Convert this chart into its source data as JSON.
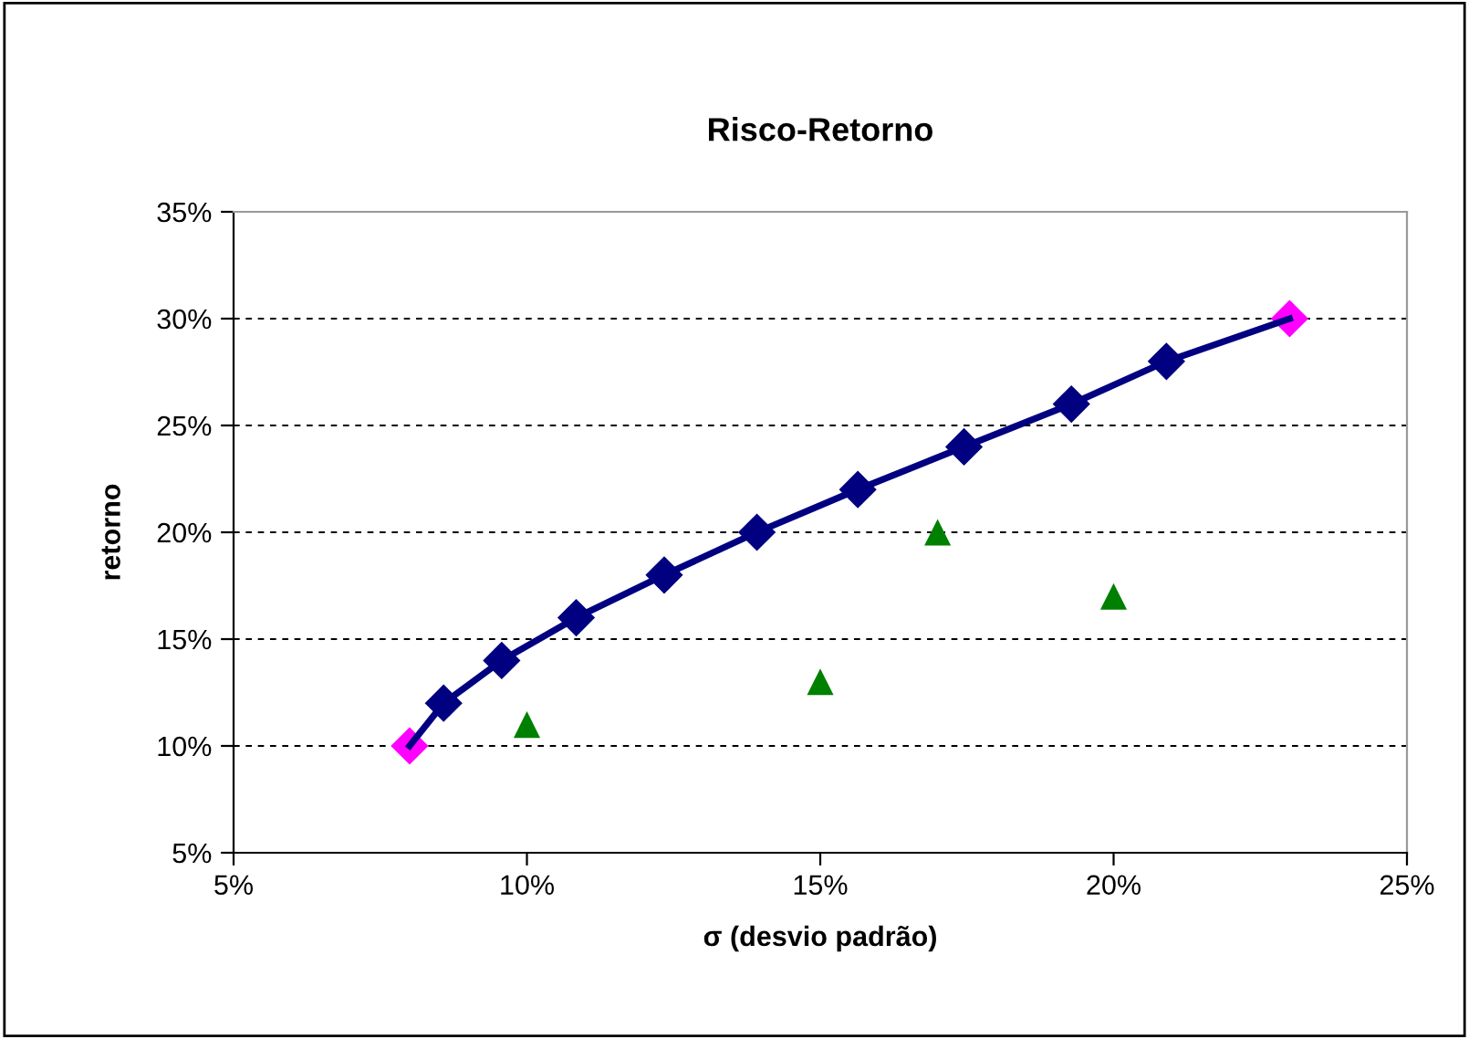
{
  "chart_data": {
    "type": "scatter",
    "title": "Risco-Retorno",
    "xlabel": "σ (desvio padrão)",
    "ylabel": "retorno",
    "xlim": [
      5,
      25
    ],
    "xticks": [
      {
        "value": 5,
        "label": "5%"
      },
      {
        "value": 10,
        "label": "10%"
      },
      {
        "value": 15,
        "label": "15%"
      },
      {
        "value": 20,
        "label": "20%"
      },
      {
        "value": 25,
        "label": "25%"
      }
    ],
    "ylim": [
      5,
      35
    ],
    "yticks": [
      {
        "value": 5,
        "label": "5%"
      },
      {
        "value": 10,
        "label": "10%"
      },
      {
        "value": 15,
        "label": "15%"
      },
      {
        "value": 20,
        "label": "20%"
      },
      {
        "value": 25,
        "label": "25%"
      },
      {
        "value": 30,
        "label": "30%"
      },
      {
        "value": 35,
        "label": "35%"
      }
    ],
    "grid": "y",
    "legend": false,
    "series": [
      {
        "type": "line",
        "color": "#000080",
        "marker": "none",
        "line_style": "solid",
        "x": [
          8,
          8.58,
          9.57,
          10.84,
          12.34,
          13.92,
          15.64,
          17.45,
          19.28,
          20.9,
          23
        ],
        "values": [
          10,
          12,
          14,
          16,
          18,
          20,
          22,
          24,
          26,
          28,
          30
        ]
      },
      {
        "color": "#000080",
        "marker": "diamond",
        "x": [
          8.58,
          9.57,
          10.84,
          12.34,
          13.92,
          15.64,
          17.45,
          19.28,
          20.9
        ],
        "values": [
          12,
          14,
          16,
          18,
          20,
          22,
          24,
          26,
          28
        ]
      },
      {
        "color": "#ff00ff",
        "marker": "diamond",
        "x": [
          8,
          23
        ],
        "values": [
          10,
          30
        ]
      },
      {
        "color": "#008000",
        "marker": "triangle",
        "x": [
          10,
          15,
          17,
          20
        ],
        "values": [
          11,
          13,
          20,
          17
        ]
      }
    ]
  }
}
